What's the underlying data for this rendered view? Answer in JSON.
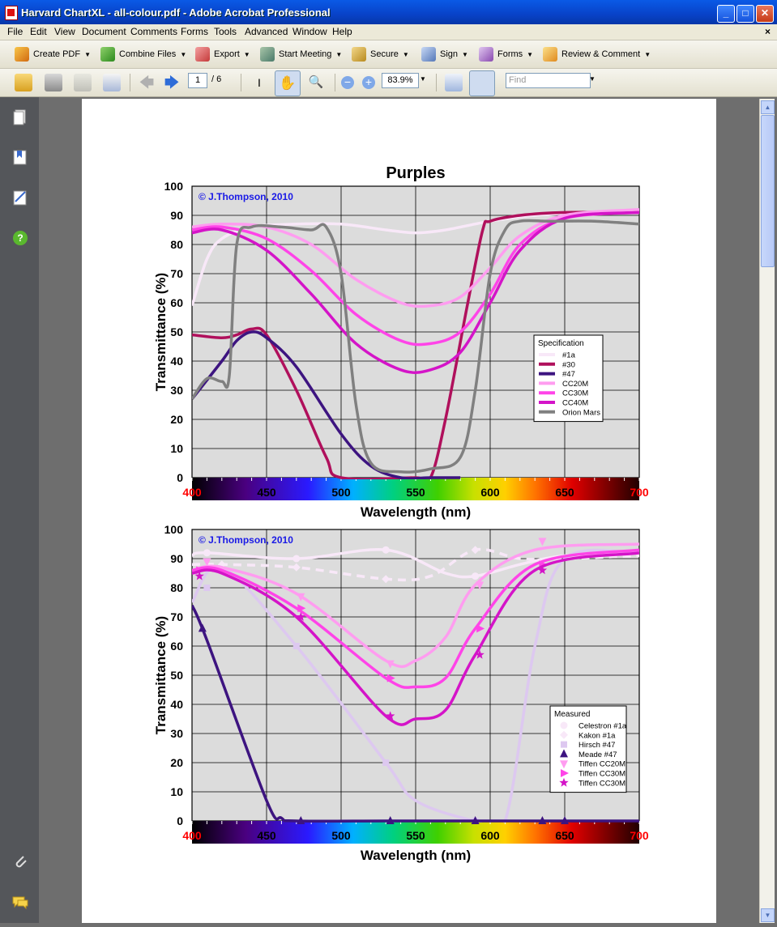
{
  "window": {
    "title": "Harvard ChartXL - all-colour.pdf - Adobe Acrobat Professional"
  },
  "menu": [
    "File",
    "Edit",
    "View",
    "Document",
    "Comments",
    "Forms",
    "Tools",
    "Advanced",
    "Window",
    "Help"
  ],
  "menu_close": "×",
  "tasks": [
    "Create PDF",
    "Combine Files",
    "Export",
    "Start Meeting",
    "Secure",
    "Sign",
    "Forms",
    "Review & Comment"
  ],
  "nav": {
    "page_current": "1",
    "page_total": "/ 6",
    "zoom": "83.9%",
    "find_placeholder": "Find"
  },
  "colors": {
    "titlebar": "#0a5ae6",
    "plot_bg": "#dcdcdc",
    "caption_blue": "#1a1ae6",
    "axis_red": "#ff0000"
  },
  "chart_data": [
    {
      "type": "line",
      "title": "Purples",
      "caption": "© J.Thompson, 2010",
      "xlabel": "Wavelength (nm)",
      "ylabel": "Transmittance (%)",
      "xlim": [
        400,
        700
      ],
      "ylim": [
        0,
        100
      ],
      "grid": true,
      "x_ticks": [
        "400",
        "450",
        "500",
        "550",
        "600",
        "650",
        "700"
      ],
      "y_ticks": [
        "0",
        "10",
        "20",
        "30",
        "40",
        "50",
        "60",
        "70",
        "80",
        "90",
        "100"
      ],
      "legend_title": "Specification",
      "legend_position": "right",
      "series": [
        {
          "name": "#1a",
          "color": "#f8e8f8",
          "x": [
            400,
            410,
            420,
            440,
            470,
            500,
            530,
            550,
            570,
            600,
            630,
            670,
            700
          ],
          "y": [
            59,
            75,
            82,
            86,
            87,
            87,
            85,
            84,
            85,
            88,
            90,
            91,
            91
          ]
        },
        {
          "name": "#30",
          "color": "#b0105c",
          "x": [
            400,
            420,
            430,
            440,
            450,
            470,
            490,
            500,
            550,
            560,
            570,
            585,
            595,
            600,
            620,
            650,
            700
          ],
          "y": [
            49,
            48,
            49,
            51,
            49,
            30,
            7,
            0,
            0,
            0,
            20,
            60,
            85,
            88,
            90,
            91,
            91
          ]
        },
        {
          "name": "#47",
          "color": "#3d1480",
          "x": [
            400,
            420,
            430,
            440,
            450,
            470,
            500,
            520,
            540,
            560,
            580
          ],
          "y": [
            27,
            40,
            47,
            50,
            48,
            38,
            15,
            4,
            0,
            0,
            0
          ]
        },
        {
          "name": "CC20M",
          "color": "#ff9cf0",
          "x": [
            400,
            420,
            450,
            480,
            510,
            540,
            560,
            580,
            600,
            620,
            650,
            700
          ],
          "y": [
            86,
            87,
            86,
            80,
            68,
            60,
            59,
            62,
            72,
            83,
            90,
            92
          ]
        },
        {
          "name": "CC30M",
          "color": "#ff44e8",
          "x": [
            400,
            420,
            450,
            480,
            510,
            540,
            560,
            580,
            600,
            620,
            650,
            700
          ],
          "y": [
            85,
            86,
            82,
            71,
            56,
            47,
            46,
            50,
            63,
            80,
            89,
            91
          ]
        },
        {
          "name": "CC40M",
          "color": "#d414c8",
          "x": [
            400,
            420,
            450,
            480,
            510,
            540,
            560,
            580,
            600,
            620,
            650,
            700
          ],
          "y": [
            84,
            85,
            78,
            63,
            46,
            37,
            37,
            43,
            60,
            78,
            89,
            91
          ]
        },
        {
          "name": "Orion Mars",
          "color": "#808080",
          "x": [
            400,
            410,
            420,
            425,
            430,
            440,
            460,
            480,
            490,
            500,
            510,
            520,
            540,
            560,
            580,
            590,
            600,
            610,
            620,
            640,
            670,
            700
          ],
          "y": [
            27,
            34,
            33,
            35,
            80,
            86,
            86,
            85,
            86,
            70,
            25,
            5,
            2,
            3,
            7,
            30,
            70,
            85,
            88,
            88,
            88,
            87
          ]
        }
      ]
    },
    {
      "type": "line",
      "caption": "© J.Thompson, 2010",
      "xlabel": "Wavelength (nm)",
      "ylabel": "Transmittance (%)",
      "xlim": [
        400,
        700
      ],
      "ylim": [
        0,
        100
      ],
      "grid": true,
      "x_ticks": [
        "400",
        "450",
        "500",
        "550",
        "600",
        "650",
        "700"
      ],
      "y_ticks": [
        "0",
        "10",
        "20",
        "30",
        "40",
        "50",
        "60",
        "70",
        "80",
        "90",
        "100"
      ],
      "legend_title": "Measured",
      "legend_position": "right",
      "series": [
        {
          "name": "Celestron #1a",
          "color": "#f8e8f8",
          "marker": "circle",
          "dash": false,
          "x": [
            400,
            410,
            470,
            530,
            570,
            590,
            620,
            650,
            700
          ],
          "y": [
            91,
            92,
            90,
            93,
            85,
            84,
            88,
            91,
            92
          ],
          "mx": [
            410,
            470,
            530,
            590
          ],
          "my": [
            92,
            90,
            93,
            84
          ]
        },
        {
          "name": "Kakon #1a",
          "color": "#f8e8f8",
          "marker": "diamond",
          "dash": true,
          "x": [
            400,
            420,
            470,
            530,
            560,
            590,
            620,
            650,
            700
          ],
          "y": [
            88,
            88,
            87,
            83,
            84,
            93,
            90,
            90,
            91
          ],
          "mx": [
            420,
            470,
            530,
            590
          ],
          "my": [
            88,
            87,
            83,
            93
          ]
        },
        {
          "name": "Hirsch #47",
          "color": "#ddc8f0",
          "marker": "square",
          "dash": false,
          "x": [
            400,
            420,
            470,
            530,
            550,
            590,
            610,
            630,
            650,
            700
          ],
          "y": [
            75,
            87,
            60,
            20,
            7,
            0,
            0,
            60,
            90,
            92
          ],
          "mx": [
            410,
            470,
            530,
            590
          ],
          "my": [
            80,
            60,
            20,
            0
          ]
        },
        {
          "name": "Meade #47",
          "color": "#3d1480",
          "marker": "triangle-up",
          "dash": false,
          "x": [
            400,
            410,
            450,
            460,
            470,
            530,
            590,
            635,
            650,
            700
          ],
          "y": [
            74,
            62,
            7,
            1,
            0,
            0,
            0,
            0,
            0,
            0
          ],
          "mx": [
            407,
            473,
            533,
            590,
            635,
            650
          ],
          "my": [
            66,
            0,
            0,
            0,
            0,
            0
          ]
        },
        {
          "name": "Tiffen CC20M",
          "color": "#ff9cf0",
          "marker": "triangle-down",
          "dash": false,
          "x": [
            400,
            420,
            470,
            530,
            550,
            570,
            590,
            630,
            700
          ],
          "y": [
            86,
            87,
            78,
            55,
            55,
            63,
            81,
            93,
            95
          ],
          "mx": [
            410,
            473,
            533,
            593,
            635
          ],
          "my": [
            89,
            77,
            54,
            81,
            96
          ]
        },
        {
          "name": "Tiffen CC30M",
          "color": "#ff44e8",
          "marker": "triangle-right",
          "dash": false,
          "x": [
            400,
            420,
            470,
            530,
            550,
            570,
            590,
            630,
            700
          ],
          "y": [
            86,
            86,
            73,
            49,
            46,
            49,
            66,
            88,
            93
          ],
          "mx": [
            405,
            473,
            533,
            593,
            635
          ],
          "my": [
            86,
            73,
            49,
            66,
            88
          ]
        },
        {
          "name": "Tiffen CC30M",
          "color": "#d414c8",
          "marker": "star",
          "dash": false,
          "x": [
            400,
            420,
            470,
            530,
            550,
            570,
            590,
            630,
            700
          ],
          "y": [
            85,
            85,
            70,
            36,
            35,
            38,
            57,
            86,
            92
          ],
          "mx": [
            405,
            473,
            533,
            593,
            635
          ],
          "my": [
            84,
            70,
            36,
            57,
            86
          ]
        }
      ]
    }
  ]
}
